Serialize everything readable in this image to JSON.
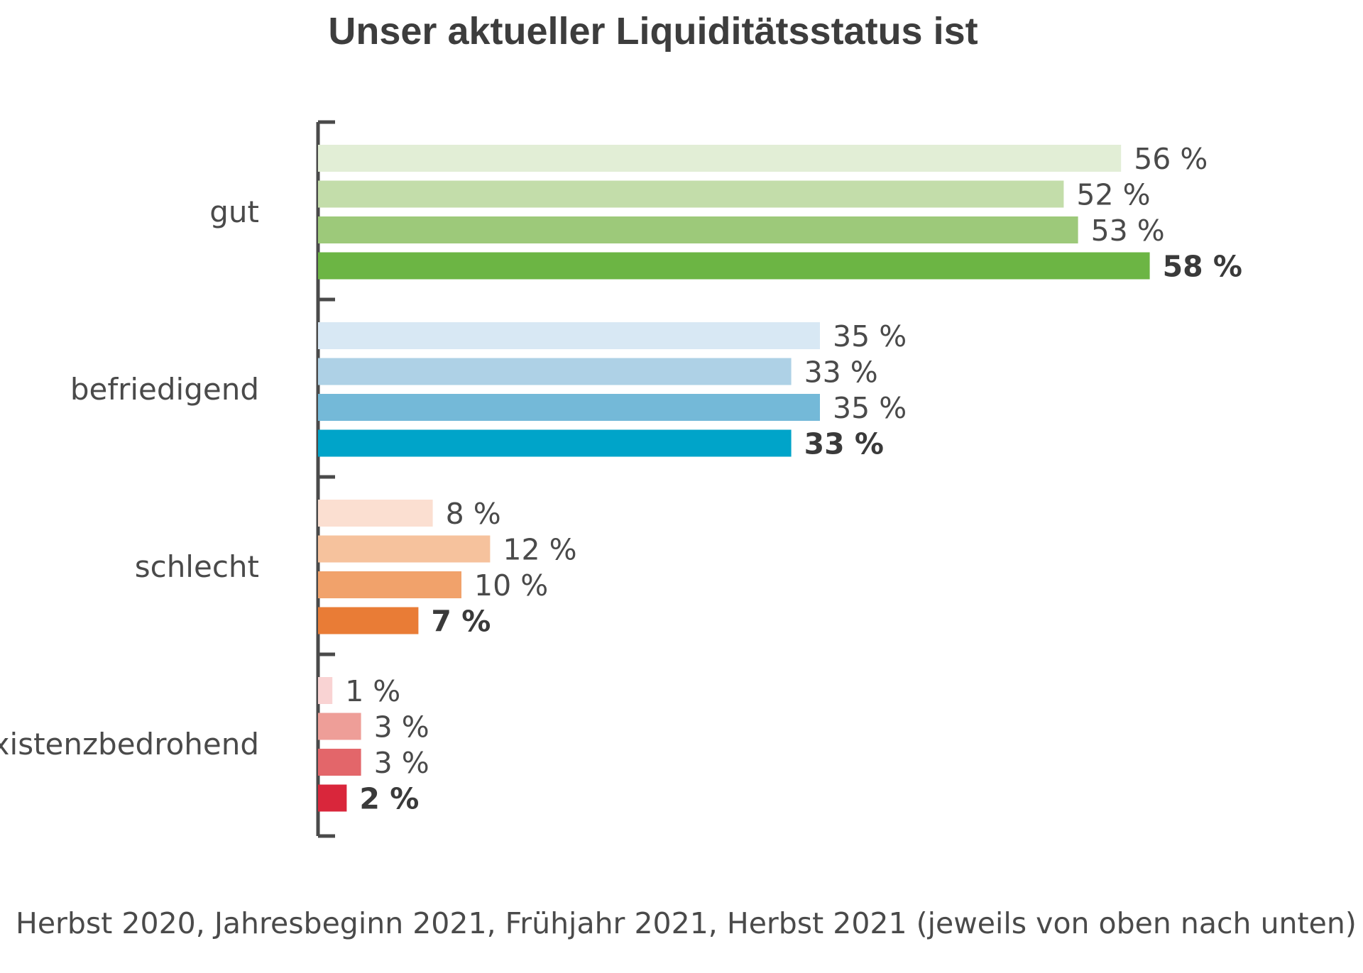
{
  "chart_data": {
    "type": "bar",
    "orientation": "horizontal",
    "title": "Unser aktueller Liquiditätsstatus ist",
    "categories": [
      "gut",
      "befriedigend",
      "schlecht",
      "existenzbedrohend"
    ],
    "series": [
      {
        "name": "Herbst 2020",
        "values": [
          56,
          35,
          8,
          1
        ]
      },
      {
        "name": "Jahresbeginn 2021",
        "values": [
          52,
          33,
          12,
          3
        ]
      },
      {
        "name": "Frühjahr 2021",
        "values": [
          53,
          35,
          10,
          3
        ]
      },
      {
        "name": "Herbst 2021",
        "values": [
          58,
          33,
          7,
          2
        ]
      }
    ],
    "value_unit": "%",
    "xlim": [
      0,
      100
    ],
    "bar_colors": [
      [
        "#e2eed6",
        "#c3ddaa",
        "#9dc97a",
        "#6cb544"
      ],
      [
        "#d8e8f4",
        "#aed1e6",
        "#74b9d8",
        "#00a4c9"
      ],
      [
        "#fbdfd1",
        "#f6c29d",
        "#f1a26b",
        "#e97c36"
      ],
      [
        "#f9d3d3",
        "#ee9e98",
        "#e3666a",
        "#d9263b"
      ]
    ],
    "highlight_series": "Herbst 2021",
    "footer": "Herbst 2020, Jahresbeginn 2021, Frühjahr 2021, Herbst 2021  (jeweils von oben nach unten)",
    "grid": false,
    "legend": "none"
  }
}
